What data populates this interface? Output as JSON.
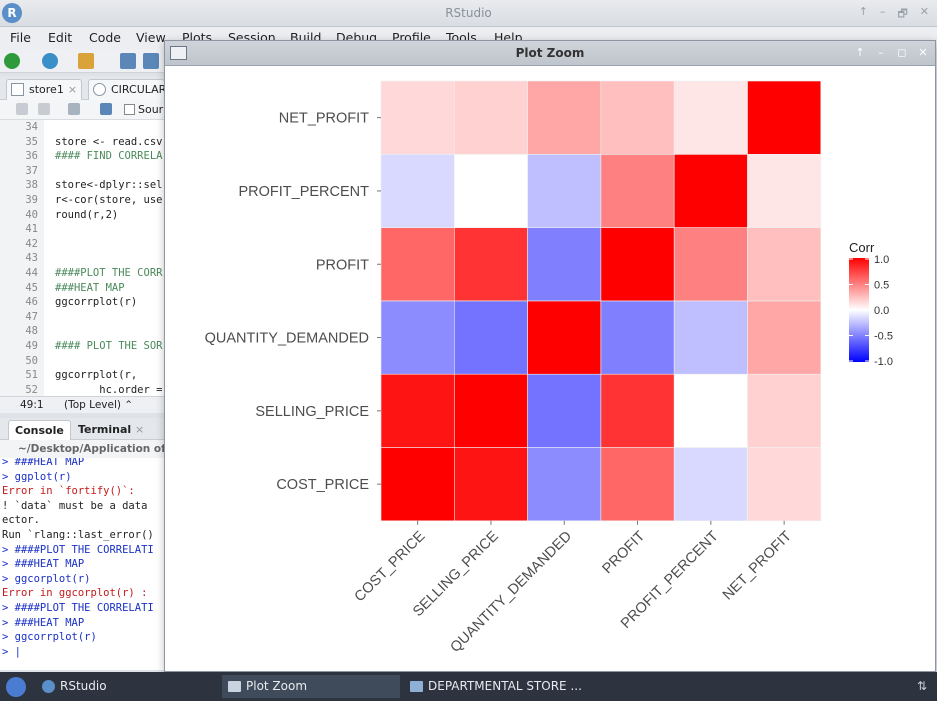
{
  "window": {
    "title": "RStudio",
    "logo_letter": "R",
    "controls": [
      "↑",
      "–",
      "🗗",
      "✕"
    ]
  },
  "menu": [
    "File",
    "Edit",
    "Code",
    "View",
    "Plots",
    "Session",
    "Build",
    "Debug",
    "Profile",
    "Tools",
    "Help"
  ],
  "source": {
    "tabs": [
      {
        "label": "store1"
      },
      {
        "label": "CIRCULAR"
      }
    ],
    "source_on_save_label": "Sour",
    "lines": [
      {
        "n": "34",
        "t": "",
        "c": false
      },
      {
        "n": "35",
        "t": "store <- read.csv",
        "c": false
      },
      {
        "n": "36",
        "t": "#### FIND CORRELA",
        "c": true
      },
      {
        "n": "37",
        "t": "",
        "c": false
      },
      {
        "n": "38",
        "t": "store<-dplyr::sel",
        "c": false
      },
      {
        "n": "39",
        "t": "r<-cor(store, use",
        "c": false
      },
      {
        "n": "40",
        "t": "round(r,2)",
        "c": false
      },
      {
        "n": "41",
        "t": "",
        "c": false
      },
      {
        "n": "42",
        "t": "",
        "c": false
      },
      {
        "n": "43",
        "t": "",
        "c": false
      },
      {
        "n": "44",
        "t": "####PLOT THE CORR",
        "c": true
      },
      {
        "n": "45",
        "t": "###HEAT MAP",
        "c": true
      },
      {
        "n": "46",
        "t": "ggcorrplot(r)",
        "c": false
      },
      {
        "n": "47",
        "t": "",
        "c": false
      },
      {
        "n": "48",
        "t": "",
        "c": false
      },
      {
        "n": "49",
        "t": "#### PLOT THE SOR",
        "c": true
      },
      {
        "n": "50",
        "t": "",
        "c": false
      },
      {
        "n": "51",
        "t": "ggcorrplot(r,",
        "c": false
      },
      {
        "n": "52",
        "t": "       hc.order =",
        "c": false
      }
    ],
    "cursor_pos": "49:1",
    "scope": "(Top Level) ⌃"
  },
  "console": {
    "tabs": [
      "Console",
      "Terminal"
    ],
    "path": "~/Desktop/Application of",
    "lines": [
      {
        "k": "cmd",
        "t": "> ###HEAT MAP"
      },
      {
        "k": "cmd",
        "t": "> ggplot(r)"
      },
      {
        "k": "err",
        "t": "Error in `fortify()`:"
      },
      {
        "k": "out",
        "t": "! `data` must be a data"
      },
      {
        "k": "out",
        "t": "ector."
      },
      {
        "k": "out",
        "t": "Run `rlang::last_error()"
      },
      {
        "k": "cmd",
        "t": "> ####PLOT THE CORRELATI"
      },
      {
        "k": "cmd",
        "t": "> ###HEAT MAP"
      },
      {
        "k": "cmd",
        "t": "> ggcorplot(r)"
      },
      {
        "k": "err",
        "t": "Error in ggcorplot(r) :"
      },
      {
        "k": "cmd",
        "t": "> ####PLOT THE CORRELATI"
      },
      {
        "k": "cmd",
        "t": "> ###HEAT MAP"
      },
      {
        "k": "cmd",
        "t": "> ggcorrplot(r)"
      },
      {
        "k": "cmd",
        "t": "> |"
      }
    ]
  },
  "plot_zoom": {
    "title": "Plot Zoom",
    "controls": [
      "↑",
      "–",
      "◻",
      "✕"
    ]
  },
  "chart_data": {
    "type": "heatmap",
    "title": "",
    "variables": [
      "COST_PRICE",
      "SELLING_PRICE",
      "QUANTITY_DEMANDED",
      "PROFIT",
      "PROFIT_PERCENT",
      "NET_PROFIT"
    ],
    "matrix": [
      [
        1.0,
        0.92,
        -0.45,
        0.6,
        -0.15,
        0.15
      ],
      [
        0.92,
        1.0,
        -0.55,
        0.8,
        0.0,
        0.18
      ],
      [
        -0.45,
        -0.55,
        1.0,
        -0.5,
        -0.25,
        0.35
      ],
      [
        0.6,
        0.8,
        -0.5,
        1.0,
        0.5,
        0.25
      ],
      [
        -0.15,
        0.0,
        -0.25,
        0.5,
        1.0,
        0.1
      ],
      [
        0.15,
        0.18,
        0.35,
        0.25,
        0.1,
        1.0
      ]
    ],
    "legend": {
      "title": "Corr",
      "ticks": [
        "1.0",
        "0.5",
        "0.0",
        "-0.5",
        "-1.0"
      ],
      "placement": "right"
    },
    "colors": {
      "high": "#ff0000",
      "mid": "#ffffff",
      "low": "#0000ff"
    },
    "grid": true
  },
  "taskbar": {
    "items": [
      {
        "label": "RStudio"
      },
      {
        "label": "Plot Zoom"
      },
      {
        "label": "DEPARTMENTAL STORE ..."
      }
    ],
    "tray_icon": "⇅"
  }
}
